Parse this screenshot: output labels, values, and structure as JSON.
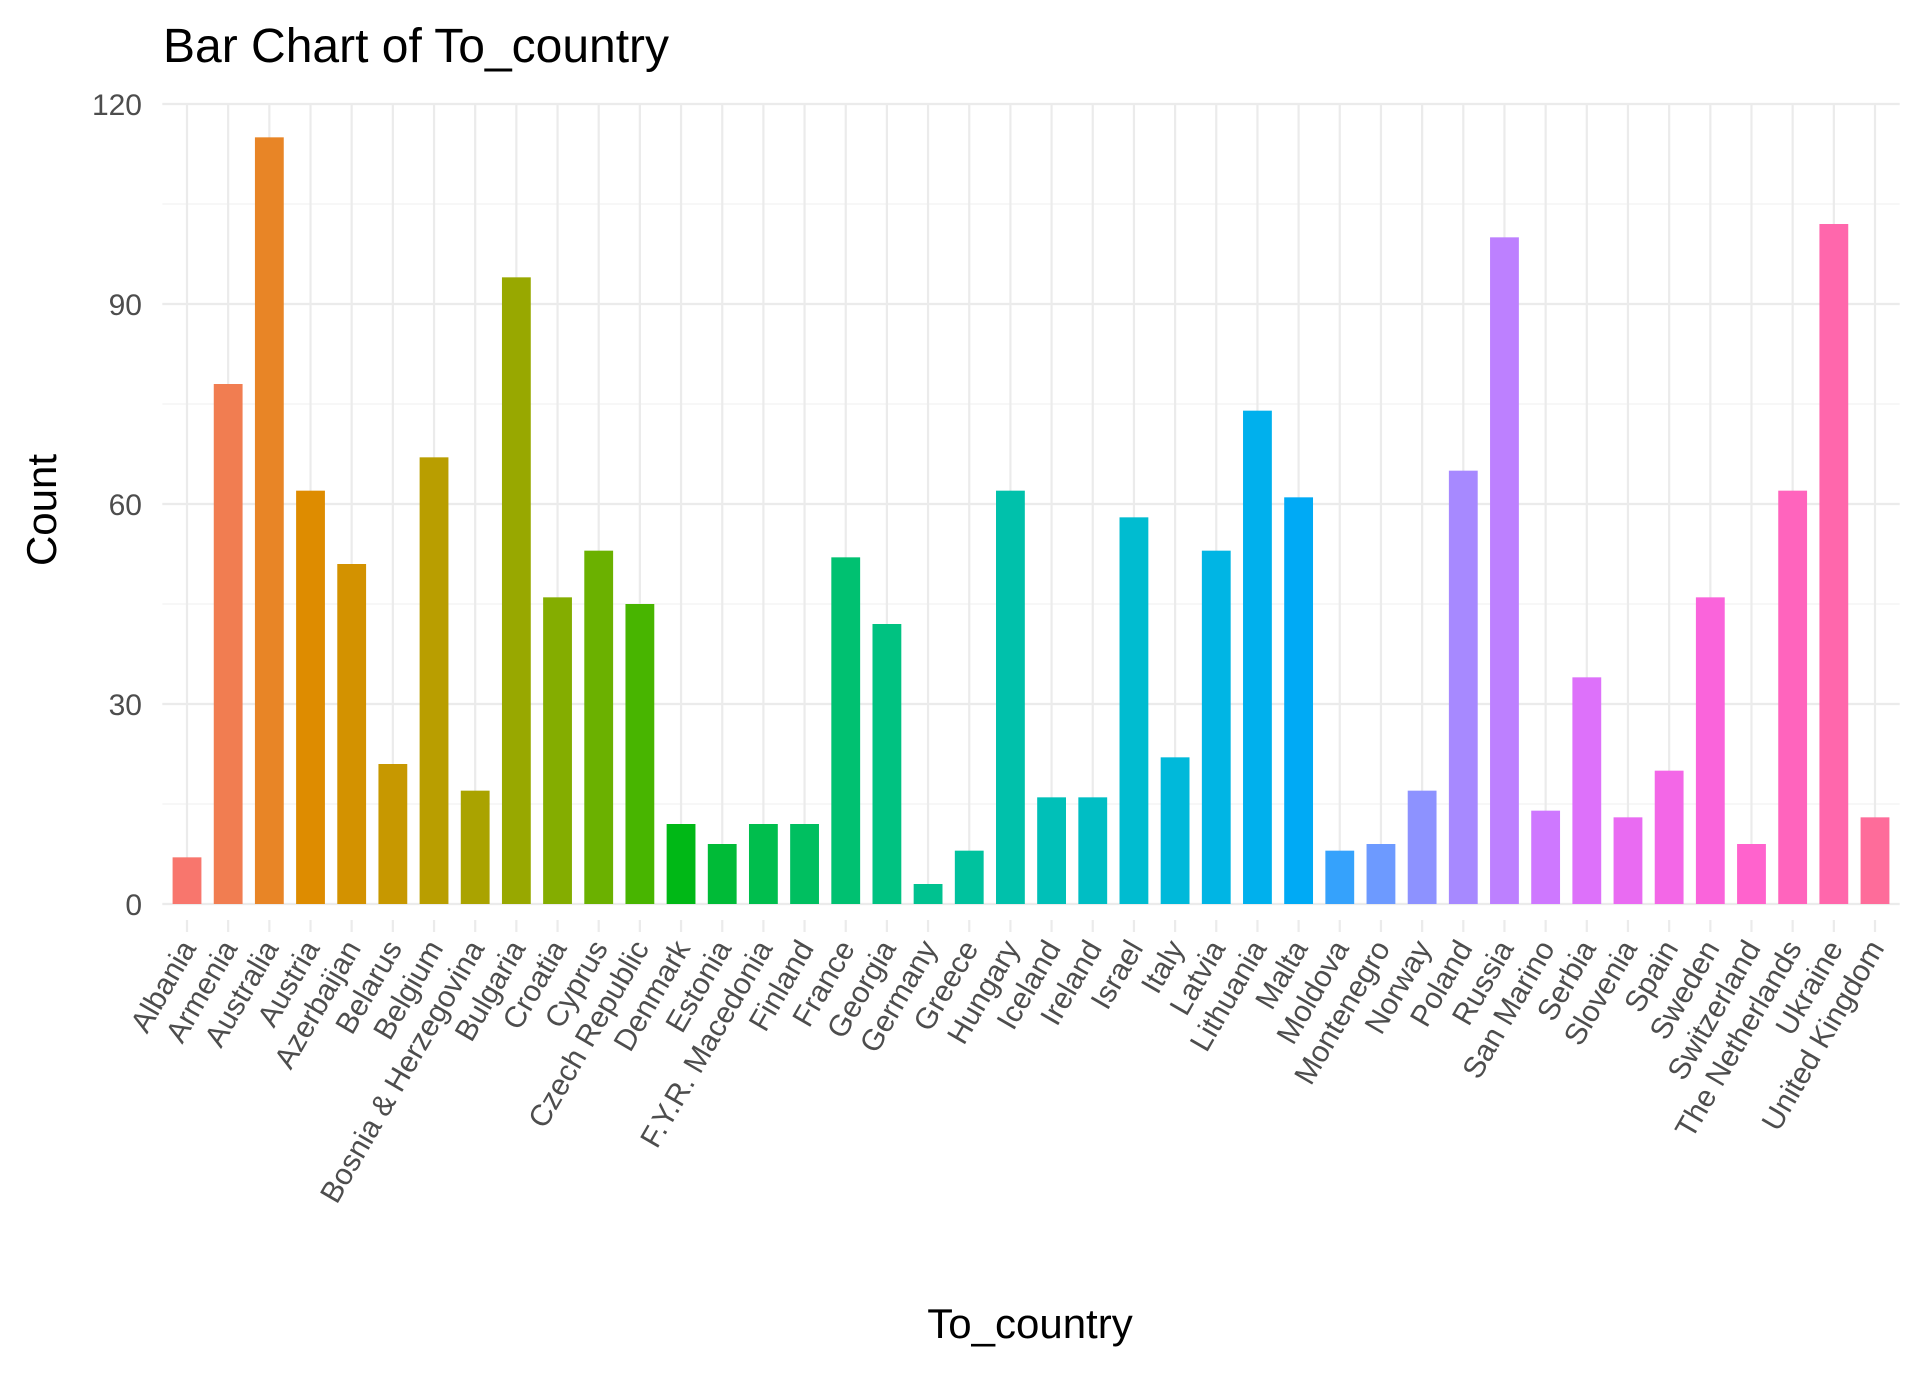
{
  "chart_data": {
    "type": "bar",
    "title": "Bar Chart of  To_country",
    "xlabel": "To_country",
    "ylabel": "Count",
    "ylim": [
      0,
      120
    ],
    "yticks": [
      0,
      30,
      60,
      90,
      120
    ],
    "grid": true,
    "legend": "none",
    "categories": [
      "Albania",
      "Armenia",
      "Australia",
      "Austria",
      "Azerbaijan",
      "Belarus",
      "Belgium",
      "Bosnia & Herzegovina",
      "Bulgaria",
      "Croatia",
      "Cyprus",
      "Czech Republic",
      "Denmark",
      "Estonia",
      "F.Y.R. Macedonia",
      "Finland",
      "France",
      "Georgia",
      "Germany",
      "Greece",
      "Hungary",
      "Iceland",
      "Ireland",
      "Israel",
      "Italy",
      "Latvia",
      "Lithuania",
      "Malta",
      "Moldova",
      "Montenegro",
      "Norway",
      "Poland",
      "Russia",
      "San Marino",
      "Serbia",
      "Slovenia",
      "Spain",
      "Sweden",
      "Switzerland",
      "The Netherlands",
      "Ukraine",
      "United Kingdom"
    ],
    "values": [
      7,
      78,
      115,
      62,
      51,
      21,
      67,
      17,
      94,
      46,
      53,
      45,
      12,
      9,
      12,
      12,
      52,
      42,
      3,
      8,
      62,
      16,
      16,
      58,
      22,
      53,
      74,
      61,
      8,
      9,
      17,
      65,
      100,
      14,
      34,
      13,
      20,
      46,
      9,
      62,
      102,
      13
    ],
    "colors": [
      "#F8766D",
      "#F17D51",
      "#E88526",
      "#DE8C00",
      "#D39200",
      "#C79800",
      "#B99E00",
      "#AAA300",
      "#98A800",
      "#84AD00",
      "#6BB100",
      "#48B500",
      "#00B816",
      "#00BB37",
      "#00BE4D",
      "#00BF60",
      "#00C171",
      "#00C281",
      "#00C290",
      "#00C29E",
      "#00C1AB",
      "#00C0B8",
      "#00BEC4",
      "#00BCD0",
      "#00B9DA",
      "#00B5E4",
      "#00B0ED",
      "#00AAF5",
      "#35A2FC",
      "#6D9AFF",
      "#8D92FF",
      "#A789FF",
      "#BD80FF",
      "#CE78FF",
      "#DD71FA",
      "#E96BF2",
      "#F367E7",
      "#FA64DB",
      "#FF63CD",
      "#FF64BD",
      "#FF67AC",
      "#FE6C9A"
    ]
  }
}
